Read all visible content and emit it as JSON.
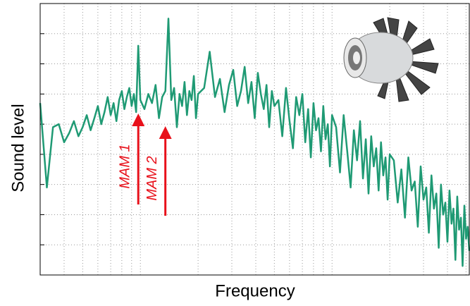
{
  "chart_data": {
    "type": "line",
    "xlabel": "Frequency",
    "ylabel": "Sound level",
    "color": "#1f9a74",
    "xscale": "log",
    "grid": true,
    "xlim": [
      3,
      520
    ],
    "ylim": [
      0,
      9
    ],
    "xticks": [
      3,
      4,
      5,
      6,
      7,
      8,
      9,
      10,
      20,
      30,
      40,
      50,
      60,
      70,
      80,
      90,
      100,
      200,
      300,
      400,
      500
    ],
    "yticks": [
      1,
      2,
      3,
      4,
      5,
      6,
      7,
      8
    ],
    "x": [
      3,
      3.25,
      3.5,
      3.75,
      4,
      4.25,
      4.5,
      4.75,
      5,
      5.25,
      5.5,
      5.75,
      6,
      6.25,
      6.5,
      6.75,
      7,
      7.25,
      7.5,
      7.75,
      8,
      8.25,
      8.5,
      8.75,
      9,
      9.25,
      9.5,
      9.75,
      10,
      10.5,
      11,
      11.5,
      12,
      12.5,
      13,
      13.5,
      14,
      14.5,
      15,
      15.5,
      16,
      16.5,
      17,
      17.5,
      18,
      18.5,
      19,
      19.5,
      20,
      21.5,
      23,
      24.5,
      26,
      27.5,
      29,
      30.5,
      32,
      33.5,
      35,
      36.5,
      38,
      39.5,
      41,
      42.5,
      44,
      45.5,
      47,
      48.5,
      50,
      52.5,
      55,
      57.5,
      60,
      62.5,
      65,
      67.5,
      70,
      72.5,
      75,
      77.5,
      80,
      82.5,
      85,
      87.5,
      90,
      92.5,
      95,
      97.5,
      100,
      105,
      110,
      115,
      120,
      125,
      130,
      135,
      140,
      145,
      150,
      155,
      160,
      165,
      170,
      175,
      180,
      185,
      190,
      195,
      200,
      210,
      220,
      230,
      240,
      250,
      260,
      270,
      280,
      290,
      300,
      310,
      320,
      330,
      340,
      350,
      360,
      370,
      380,
      390,
      400,
      410,
      420,
      430,
      440,
      450,
      460,
      470,
      480,
      490,
      500,
      510,
      520
    ],
    "values": [
      5.7,
      2.9,
      4.9,
      5.0,
      4.4,
      4.7,
      5.1,
      4.6,
      4.9,
      5.3,
      4.8,
      5.2,
      5.6,
      5.0,
      5.4,
      5.9,
      5.3,
      5.7,
      5.1,
      5.8,
      6.1,
      5.5,
      5.9,
      6.2,
      5.6,
      6.0,
      5.4,
      7.6,
      5.8,
      5.5,
      6.0,
      5.7,
      6.3,
      5.2,
      5.9,
      6.1,
      8.5,
      5.8,
      6.2,
      4.9,
      6.0,
      5.6,
      6.4,
      5.3,
      6.1,
      5.8,
      6.6,
      5.2,
      6.0,
      6.2,
      7.4,
      5.9,
      6.5,
      5.4,
      6.3,
      6.8,
      5.6,
      6.1,
      6.9,
      5.7,
      6.4,
      5.2,
      6.7,
      6.0,
      5.5,
      6.3,
      4.9,
      6.1,
      5.6,
      5.8,
      4.6,
      6.2,
      5.1,
      4.2,
      5.9,
      5.3,
      6.0,
      4.4,
      5.5,
      3.9,
      5.7,
      4.8,
      5.2,
      4.1,
      5.6,
      4.5,
      5.0,
      3.6,
      5.3,
      4.9,
      3.4,
      5.3,
      4.1,
      2.9,
      4.8,
      3.8,
      5.1,
      3.2,
      4.5,
      2.7,
      4.6,
      3.6,
      4.2,
      2.8,
      4.4,
      3.3,
      3.9,
      2.5,
      4.0,
      3.8,
      2.4,
      3.5,
      1.9,
      3.9,
      2.8,
      3.1,
      1.6,
      3.6,
      2.5,
      2.9,
      1.4,
      3.3,
      2.2,
      2.7,
      0.9,
      3.0,
      2.0,
      2.4,
      1.1,
      2.8,
      1.7,
      2.2,
      0.5,
      2.6,
      1.5,
      1.9,
      0.3,
      2.3,
      1.2,
      1.6,
      0.8
    ],
    "annotations": [
      {
        "text": "MAM 1",
        "x": 9.75,
        "color": "#e8111b"
      },
      {
        "text": "MAM 2",
        "x": 13.5,
        "color": "#e8111b"
      }
    ]
  }
}
